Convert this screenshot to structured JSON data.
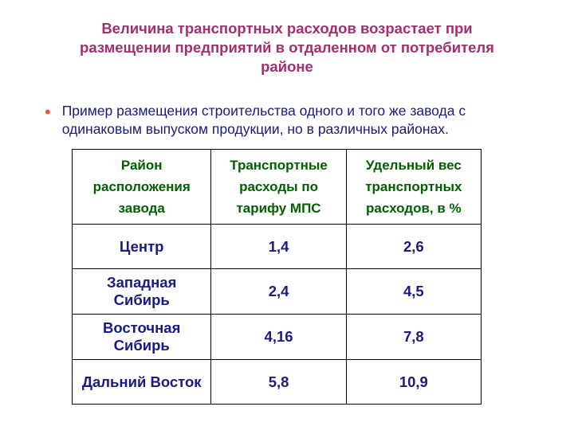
{
  "slide": {
    "title": "Величина транспортных расходов возрастает при размещении предприятий в отдаленном от потребителя районе",
    "bullet": "Пример размещения строительства одного и того же завода с одинаковым выпуском продукции, но в различных районах.",
    "colors": {
      "title": "#a03070",
      "bullet_marker": "#e06030",
      "bullet_text": "#1a1a80",
      "header_text": "#006000",
      "cell_text": "#1a1a80",
      "border": "#000000",
      "background": "#ffffff"
    },
    "typography": {
      "title_fontsize": 18.5,
      "bullet_fontsize": 17.5,
      "header_fontsize": 17,
      "cell_fontsize": 18.5,
      "font_family": "Arial"
    },
    "table": {
      "type": "table",
      "column_widths": [
        "34%",
        "33%",
        "33%"
      ],
      "columns": [
        "Район расположения завода",
        "Транспортные расходы по тарифу МПС",
        "Удельный вес транспортных расходов, в %"
      ],
      "rows": [
        {
          "region": "Центр",
          "transport": "1,4",
          "share": "2,6"
        },
        {
          "region": "Западная Сибирь",
          "transport": "2,4",
          "share": "4,5"
        },
        {
          "region": "Восточная Сибирь",
          "transport": "4,16",
          "share": "7,8"
        },
        {
          "region": "Дальний Восток",
          "transport": "5,8",
          "share": "10,9"
        }
      ]
    }
  }
}
